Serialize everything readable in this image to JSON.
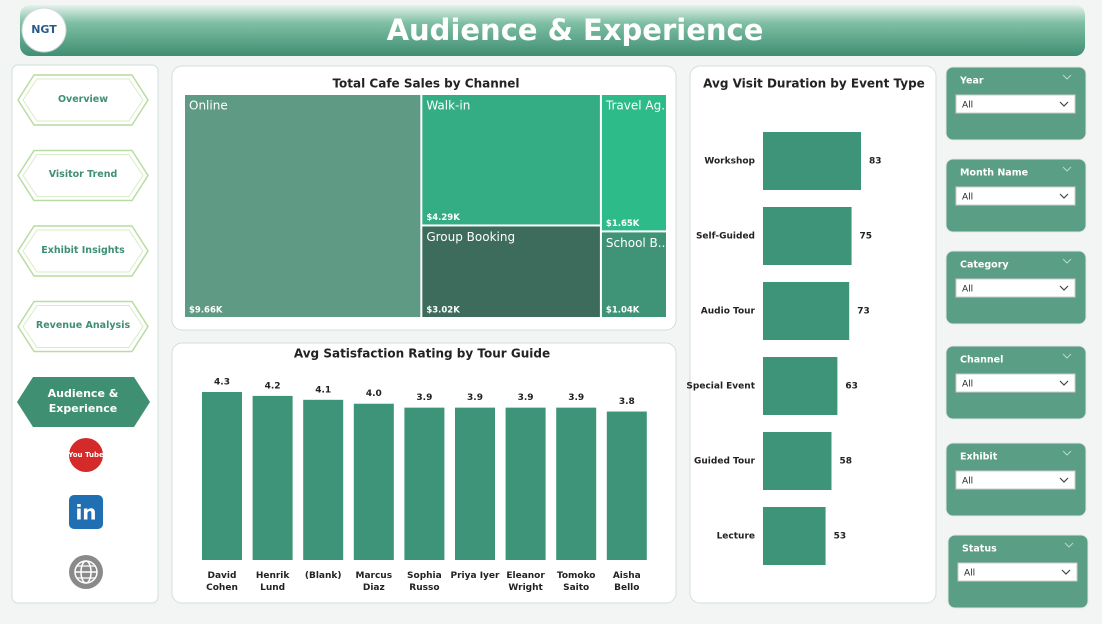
{
  "header": {
    "logo": "NGT",
    "title": "Audience & Experience"
  },
  "nav": [
    "Overview",
    "Visitor Trend",
    "Exhibit Insights",
    "Revenue Analysis",
    "Audience & Experience"
  ],
  "social": [
    "You Tube",
    "in"
  ],
  "filters": [
    {
      "label": "Year",
      "value": "All"
    },
    {
      "label": "Month Name",
      "value": "All"
    },
    {
      "label": "Category",
      "value": "All"
    },
    {
      "label": "Channel",
      "value": "All"
    },
    {
      "label": "Exhibit",
      "value": "All"
    },
    {
      "label": "Status",
      "value": "All"
    }
  ],
  "chart_data": [
    {
      "type": "treemap",
      "title": "Total Cafe Sales by Channel",
      "categories": [
        "Online",
        "Walk-in",
        "Group Booking",
        "Travel Ag...",
        "School B..."
      ],
      "values": [
        9660,
        4290,
        3020,
        1650,
        1040
      ],
      "value_labels": [
        "$9.66K",
        "$4.29K",
        "$3.02K",
        "$1.65K",
        "$1.04K"
      ],
      "colors": [
        "#5f9a85",
        "#35ad84",
        "#3d6b5c",
        "#2dbb8a",
        "#3f9376"
      ]
    },
    {
      "type": "bar",
      "title": "Avg Satisfaction Rating by Tour Guide",
      "categories": [
        "David Cohen",
        "Henrik Lund",
        "(Blank)",
        "Marcus Diaz",
        "Sophia Russo",
        "Priya Iyer",
        "Eleanor Wright",
        "Tomoko Saito",
        "Aisha Bello"
      ],
      "values": [
        4.3,
        4.2,
        4.1,
        4.0,
        3.9,
        3.9,
        3.9,
        3.9,
        3.8
      ],
      "value_labels": [
        "4.3",
        "4.2",
        "4.1",
        "4.0",
        "3.9",
        "3.9",
        "3.9",
        "3.9",
        "3.8"
      ],
      "color": "#3d9478"
    },
    {
      "type": "hbar",
      "title": "Avg Visit Duration by Event Type",
      "categories": [
        "Workshop",
        "Self-Guided",
        "Audio Tour",
        "Special Event",
        "Guided Tour",
        "Lecture"
      ],
      "values": [
        83,
        75,
        73,
        63,
        58,
        53
      ],
      "color": "#3d9478"
    }
  ]
}
